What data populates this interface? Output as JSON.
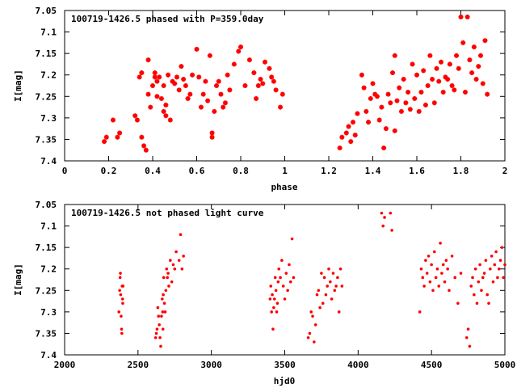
{
  "chart_data": [
    {
      "type": "scatter",
      "title": "100719-1426.5 phased with P=359.0day",
      "xlabel": "phase",
      "ylabel": "I[mag]",
      "xlim": [
        0,
        2
      ],
      "ylim": [
        7.4,
        7.05
      ],
      "y_inverted": true,
      "xticks": [
        "0",
        "0.2",
        "0.4",
        "0.6",
        "0.8",
        "1",
        "1.2",
        "1.4",
        "1.6",
        "1.8",
        "2"
      ],
      "yticks": [
        "7.05",
        "7.1",
        "7.15",
        "7.2",
        "7.25",
        "7.3",
        "7.35",
        "7.4"
      ],
      "marker_color": "#ff0000",
      "grid": false,
      "series": [
        {
          "x": [
            0.18,
            0.19,
            0.22,
            0.24,
            0.25,
            0.32,
            0.33,
            0.34,
            0.35,
            0.35,
            0.36,
            0.37,
            0.38,
            0.38,
            0.39,
            0.4,
            0.41,
            0.41,
            0.42,
            0.42,
            0.43,
            0.44,
            0.45,
            0.45,
            0.46,
            0.46,
            0.47,
            0.48,
            0.49,
            0.5,
            0.51,
            0.52,
            0.53,
            0.54,
            0.55,
            0.56,
            0.57,
            0.58,
            0.6,
            0.61,
            0.62,
            0.63,
            0.64,
            0.65,
            0.66,
            0.67,
            0.67,
            0.68,
            0.69,
            0.7,
            0.71,
            0.72,
            0.73,
            0.74,
            0.75,
            0.77,
            0.79,
            0.8,
            0.82,
            0.84,
            0.86,
            0.87,
            0.88,
            0.89,
            0.9,
            0.91,
            0.93,
            0.94,
            0.95,
            0.96,
            0.98,
            0.99
          ],
          "y": [
            7.355,
            7.345,
            7.305,
            7.345,
            7.335,
            7.295,
            7.305,
            7.205,
            7.345,
            7.195,
            7.365,
            7.375,
            7.165,
            7.245,
            7.275,
            7.225,
            7.205,
            7.195,
            7.215,
            7.25,
            7.205,
            7.255,
            7.225,
            7.285,
            7.27,
            7.295,
            7.2,
            7.305,
            7.215,
            7.22,
            7.205,
            7.235,
            7.18,
            7.21,
            7.225,
            7.255,
            7.245,
            7.2,
            7.14,
            7.205,
            7.275,
            7.245,
            7.215,
            7.26,
            7.155,
            7.335,
            7.345,
            7.285,
            7.225,
            7.215,
            7.245,
            7.275,
            7.265,
            7.2,
            7.235,
            7.175,
            7.145,
            7.135,
            7.225,
            7.165,
            7.195,
            7.255,
            7.225,
            7.21,
            7.22,
            7.17,
            7.185,
            7.205,
            7.215,
            7.235,
            7.275,
            7.245
          ]
        },
        {
          "x": [
            1.25,
            1.26,
            1.28,
            1.29,
            1.3,
            1.31,
            1.32,
            1.33,
            1.35,
            1.36,
            1.37,
            1.38,
            1.39,
            1.4,
            1.41,
            1.42,
            1.43,
            1.44,
            1.45,
            1.46,
            1.47,
            1.48,
            1.49,
            1.5,
            1.5,
            1.51,
            1.52,
            1.53,
            1.54,
            1.55,
            1.56,
            1.57,
            1.58,
            1.59,
            1.6,
            1.61,
            1.62,
            1.63,
            1.64,
            1.65,
            1.66,
            1.67,
            1.68,
            1.69,
            1.7,
            1.71,
            1.72,
            1.73,
            1.74,
            1.75,
            1.76,
            1.77,
            1.78,
            1.79,
            1.8,
            1.81,
            1.82,
            1.83,
            1.84,
            1.85,
            1.86,
            1.87,
            1.88,
            1.89,
            1.9,
            1.91,
            1.92
          ],
          "y": [
            7.37,
            7.345,
            7.335,
            7.32,
            7.355,
            7.31,
            7.34,
            7.29,
            7.2,
            7.23,
            7.285,
            7.31,
            7.255,
            7.22,
            7.245,
            7.25,
            7.305,
            7.275,
            7.37,
            7.325,
            7.245,
            7.265,
            7.195,
            7.155,
            7.33,
            7.26,
            7.23,
            7.285,
            7.21,
            7.265,
            7.24,
            7.28,
            7.175,
            7.255,
            7.2,
            7.285,
            7.24,
            7.19,
            7.27,
            7.225,
            7.155,
            7.21,
            7.265,
            7.185,
            7.215,
            7.17,
            7.24,
            7.205,
            7.21,
            7.175,
            7.225,
            7.235,
            7.155,
            7.185,
            7.065,
            7.125,
            7.24,
            7.065,
            7.165,
            7.195,
            7.135,
            7.21,
            7.18,
            7.155,
            7.22,
            7.12,
            7.245
          ]
        }
      ]
    },
    {
      "type": "scatter",
      "title": "100719-1426.5 not phased light curve",
      "xlabel": "hjd0",
      "ylabel": "I[mag]",
      "xlim": [
        2000,
        5000
      ],
      "ylim": [
        7.4,
        7.05
      ],
      "y_inverted": true,
      "xticks": [
        "2000",
        "2500",
        "3000",
        "3500",
        "4000",
        "4500",
        "5000"
      ],
      "yticks": [
        "7.05",
        "7.1",
        "7.15",
        "7.2",
        "7.25",
        "7.3",
        "7.35",
        "7.4"
      ],
      "marker_color": "#ff0000",
      "grid": false,
      "series": [
        {
          "x": [
            2370,
            2375,
            2378,
            2380,
            2382,
            2385,
            2388,
            2390,
            2392,
            2395,
            2396,
            2398,
            2620,
            2625,
            2630,
            2635,
            2640,
            2645,
            2650,
            2655,
            2660,
            2665,
            2668,
            2670,
            2672,
            2675,
            2680,
            2685,
            2690,
            2695,
            2700,
            2705,
            2710,
            2720,
            2730,
            2740,
            2750,
            2760,
            2780,
            2790,
            2800,
            2810,
            3400,
            3405,
            3410,
            3415,
            3420,
            3425,
            3430,
            3435,
            3440,
            3445,
            3450,
            3455,
            3460,
            3470,
            3480,
            3490,
            3500,
            3510,
            3520,
            3530,
            3540,
            3550,
            3560,
            3660,
            3670,
            3680,
            3690,
            3700,
            3710,
            3720,
            3730,
            3740,
            3750,
            3760,
            3770,
            3780,
            3790,
            3800,
            3810,
            3820,
            3830,
            3840,
            3850,
            3860,
            3870,
            3880,
            3890,
            4160,
            4170,
            4180,
            4220,
            4230,
            4420,
            4430,
            4440,
            4450,
            4460,
            4470,
            4480,
            4490,
            4500,
            4510,
            4520,
            4530,
            4540,
            4550,
            4560,
            4570,
            4580,
            4590,
            4600,
            4610,
            4620,
            4640,
            4660,
            4680,
            4700,
            4740,
            4750,
            4760,
            4770,
            4780,
            4790,
            4800,
            4810,
            4820,
            4830,
            4840,
            4850,
            4860,
            4870,
            4880,
            4890,
            4900,
            4910,
            4920,
            4930,
            4940,
            4950,
            4960,
            4970,
            4980,
            4990,
            5000
          ],
          "y": [
            7.3,
            7.25,
            7.22,
            7.21,
            7.26,
            7.31,
            7.34,
            7.35,
            7.24,
            7.27,
            7.28,
            7.24,
            7.36,
            7.35,
            7.34,
            7.29,
            7.31,
            7.33,
            7.36,
            7.38,
            7.31,
            7.27,
            7.3,
            7.34,
            7.26,
            7.22,
            7.28,
            7.3,
            7.25,
            7.2,
            7.22,
            7.21,
            7.24,
            7.18,
            7.23,
            7.19,
            7.2,
            7.16,
            7.18,
            7.12,
            7.2,
            7.17,
            7.27,
            7.24,
            7.3,
            7.26,
            7.34,
            7.29,
            7.27,
            7.22,
            7.25,
            7.3,
            7.28,
            7.23,
            7.2,
            7.22,
            7.18,
            7.24,
            7.27,
            7.21,
            7.25,
            7.19,
            7.23,
            7.13,
            7.22,
            7.36,
            7.35,
            7.3,
            7.31,
            7.37,
            7.33,
            7.26,
            7.25,
            7.29,
            7.21,
            7.28,
            7.22,
            7.26,
            7.24,
            7.2,
            7.23,
            7.27,
            7.21,
            7.25,
            7.24,
            7.22,
            7.3,
            7.2,
            7.24,
            7.07,
            7.1,
            7.08,
            7.07,
            7.11,
            7.3,
            7.2,
            7.22,
            7.24,
            7.18,
            7.21,
            7.17,
            7.23,
            7.19,
            7.25,
            7.16,
            7.22,
            7.2,
            7.24,
            7.14,
            7.21,
            7.19,
            7.23,
            7.18,
            7.2,
            7.25,
            7.17,
            7.22,
            7.28,
            7.21,
            7.36,
            7.34,
            7.38,
            7.24,
            7.22,
            7.26,
            7.2,
            7.28,
            7.23,
            7.19,
            7.25,
            7.22,
            7.21,
            7.18,
            7.26,
            7.28,
            7.2,
            7.17,
            7.23,
            7.19,
            7.16,
            7.22,
            7.2,
            7.18,
            7.15,
            7.22,
            7.19
          ]
        }
      ]
    }
  ]
}
